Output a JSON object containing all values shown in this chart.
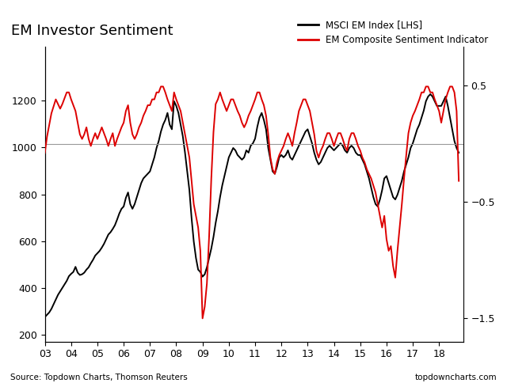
{
  "title": "EM Investor Sentiment",
  "legend1": "MSCI EM Index [LHS]",
  "legend2": "EM Composite Sentiment Indicator",
  "source_left": "Source: Topdown Charts, Thomson Reuters",
  "source_right": "topdowncharts.com",
  "xlim_start": 2003.0,
  "xlim_end": 2018.92,
  "left_ylim": [
    170,
    1430
  ],
  "right_ylim": [
    -1.7,
    0.83
  ],
  "left_yticks": [
    200,
    400,
    600,
    800,
    1000,
    1200
  ],
  "right_yticks": [
    -1.5,
    -0.5,
    0.5
  ],
  "xticks": [
    2003,
    2004,
    2005,
    2006,
    2007,
    2008,
    2009,
    2010,
    2011,
    2012,
    2013,
    2014,
    2015,
    2016,
    2017,
    2018
  ],
  "xticklabels": [
    "03",
    "04",
    "05",
    "06",
    "07",
    "08",
    "09",
    "10",
    "11",
    "12",
    "13",
    "14",
    "15",
    "16",
    "17",
    "18"
  ],
  "line1_color": "#000000",
  "line2_color": "#dd0000",
  "hline_color": "#999999",
  "bg_color": "#ffffff",
  "msci_y": [
    275,
    285,
    295,
    310,
    330,
    350,
    370,
    385,
    400,
    415,
    430,
    450,
    460,
    468,
    490,
    465,
    455,
    458,
    465,
    478,
    488,
    505,
    520,
    538,
    548,
    558,
    572,
    588,
    608,
    628,
    638,
    652,
    668,
    692,
    718,
    738,
    748,
    785,
    808,
    758,
    738,
    758,
    788,
    818,
    848,
    868,
    878,
    888,
    898,
    928,
    958,
    998,
    1028,
    1068,
    1098,
    1118,
    1148,
    1098,
    1078,
    1198,
    1178,
    1148,
    1098,
    1048,
    978,
    898,
    818,
    698,
    598,
    528,
    478,
    468,
    448,
    458,
    488,
    528,
    568,
    618,
    678,
    728,
    788,
    838,
    878,
    918,
    958,
    978,
    998,
    988,
    968,
    958,
    948,
    958,
    988,
    978,
    1008,
    1018,
    1038,
    1088,
    1128,
    1148,
    1118,
    1078,
    998,
    948,
    898,
    888,
    918,
    958,
    968,
    958,
    968,
    988,
    958,
    948,
    968,
    988,
    1008,
    1028,
    1048,
    1068,
    1078,
    1048,
    1018,
    978,
    948,
    928,
    938,
    958,
    978,
    998,
    1008,
    998,
    988,
    998,
    1008,
    1018,
    1008,
    988,
    978,
    998,
    1008,
    998,
    978,
    968,
    968,
    948,
    928,
    898,
    868,
    828,
    788,
    758,
    748,
    778,
    818,
    868,
    878,
    848,
    818,
    788,
    778,
    798,
    828,
    858,
    898,
    928,
    958,
    998,
    1018,
    1048,
    1078,
    1098,
    1128,
    1158,
    1198,
    1218,
    1228,
    1218,
    1198,
    1178,
    1178,
    1178,
    1198,
    1218,
    1178,
    1128,
    1078,
    1028,
    998,
    978
  ],
  "sent_y": [
    -0.08,
    0.06,
    0.16,
    0.26,
    0.32,
    0.38,
    0.34,
    0.3,
    0.34,
    0.39,
    0.44,
    0.44,
    0.38,
    0.33,
    0.28,
    0.18,
    0.08,
    0.04,
    0.08,
    0.14,
    0.04,
    -0.02,
    0.04,
    0.09,
    0.04,
    0.09,
    0.14,
    0.09,
    0.04,
    -0.02,
    0.04,
    0.09,
    -0.02,
    0.04,
    0.09,
    0.14,
    0.18,
    0.28,
    0.33,
    0.18,
    0.08,
    0.04,
    0.08,
    0.14,
    0.18,
    0.24,
    0.28,
    0.33,
    0.33,
    0.38,
    0.38,
    0.44,
    0.44,
    0.49,
    0.49,
    0.44,
    0.38,
    0.33,
    0.28,
    0.44,
    0.38,
    0.33,
    0.28,
    0.18,
    0.08,
    -0.02,
    -0.12,
    -0.32,
    -0.52,
    -0.62,
    -0.72,
    -0.92,
    -1.5,
    -1.4,
    -1.2,
    -0.8,
    -0.3,
    0.1,
    0.34,
    0.38,
    0.44,
    0.38,
    0.33,
    0.28,
    0.33,
    0.38,
    0.38,
    0.33,
    0.28,
    0.24,
    0.18,
    0.14,
    0.18,
    0.24,
    0.28,
    0.33,
    0.38,
    0.44,
    0.44,
    0.38,
    0.33,
    0.24,
    0.08,
    -0.12,
    -0.22,
    -0.26,
    -0.16,
    -0.1,
    -0.06,
    -0.02,
    0.04,
    0.09,
    0.04,
    -0.02,
    0.09,
    0.18,
    0.28,
    0.33,
    0.38,
    0.38,
    0.33,
    0.28,
    0.18,
    0.08,
    -0.06,
    -0.12,
    -0.06,
    -0.02,
    0.04,
    0.09,
    0.09,
    0.04,
    -0.02,
    0.04,
    0.09,
    0.09,
    0.04,
    -0.02,
    -0.06,
    0.04,
    0.09,
    0.09,
    0.04,
    -0.02,
    -0.06,
    -0.12,
    -0.16,
    -0.22,
    -0.26,
    -0.3,
    -0.36,
    -0.42,
    -0.52,
    -0.62,
    -0.72,
    -0.62,
    -0.82,
    -0.92,
    -0.88,
    -1.05,
    -1.15,
    -0.92,
    -0.72,
    -0.52,
    -0.3,
    -0.1,
    0.09,
    0.18,
    0.24,
    0.28,
    0.33,
    0.38,
    0.44,
    0.44,
    0.49,
    0.49,
    0.44,
    0.44,
    0.38,
    0.33,
    0.28,
    0.18,
    0.28,
    0.38,
    0.44,
    0.49,
    0.49,
    0.44,
    0.28,
    -0.32
  ]
}
